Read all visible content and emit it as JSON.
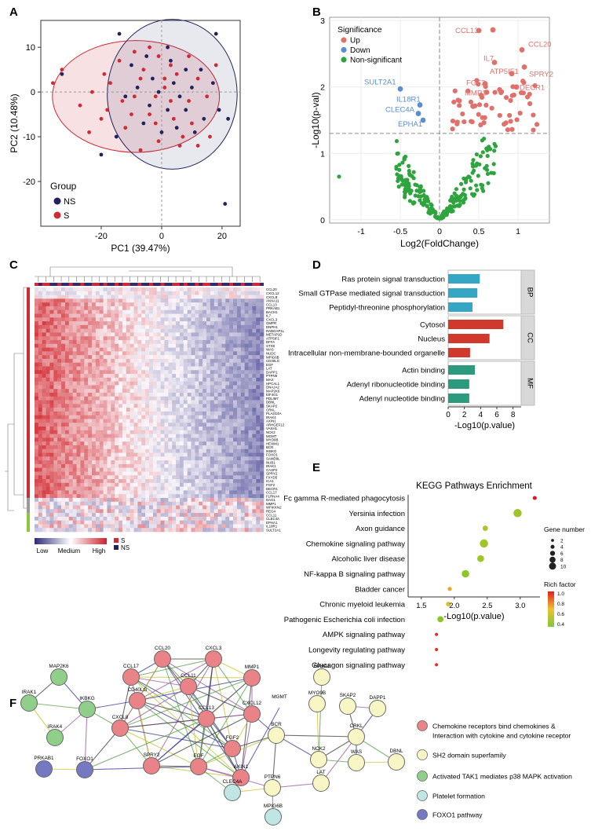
{
  "panel_letters": [
    "A",
    "B",
    "C",
    "D",
    "E",
    "F"
  ],
  "colors": {
    "ns": "#22225e",
    "s": "#cf2a36",
    "up": "#e0706a",
    "down": "#5b8ed1",
    "nonsig": "#2ea43f",
    "go_bp": "#35a7c4",
    "go_cc": "#cf3a2c",
    "go_mf": "#2d9a7d",
    "net_red": "#ea8387",
    "net_yellow": "#f7f6c4",
    "net_green": "#8fcf8a",
    "net_cyan": "#bfe6e3",
    "net_blue": "#7579c2"
  },
  "chart_data": [
    {
      "id": "A",
      "type": "scatter",
      "xlabel": "PC1 (39.47%)",
      "ylabel": "PC2 (10.48%)",
      "xlim": [
        -40,
        26
      ],
      "ylim": [
        -30,
        16
      ],
      "xticks": [
        -20,
        0,
        20
      ],
      "yticks": [
        10,
        0,
        -10,
        -20
      ],
      "legend": {
        "title": "Group",
        "entries": [
          "NS",
          "S"
        ],
        "position": "bottom-left"
      },
      "series": [
        {
          "name": "NS",
          "points": [
            [
              -5,
              8
            ],
            [
              2,
              10
            ],
            [
              -10,
              6
            ],
            [
              8,
              5
            ],
            [
              13,
              5
            ],
            [
              17,
              2
            ],
            [
              -3,
              3
            ],
            [
              -8,
              1
            ],
            [
              4,
              2
            ],
            [
              10,
              1
            ],
            [
              -1,
              0
            ],
            [
              6,
              -1
            ],
            [
              -12,
              -1
            ],
            [
              -4,
              -3
            ],
            [
              2,
              -4
            ],
            [
              8,
              -4
            ],
            [
              14,
              -6
            ],
            [
              19,
              -4
            ],
            [
              22,
              -6
            ],
            [
              -6,
              -7
            ],
            [
              0,
              -9
            ],
            [
              5,
              -8
            ],
            [
              11,
              -9
            ],
            [
              -15,
              -10
            ],
            [
              -20,
              -14
            ],
            [
              21,
              -25
            ],
            [
              -33,
              4
            ],
            [
              -14,
              13
            ],
            [
              18,
              13
            ],
            [
              3,
              7
            ]
          ]
        },
        {
          "name": "S",
          "points": [
            [
              -4,
              10
            ],
            [
              -9,
              9
            ],
            [
              -14,
              7
            ],
            [
              -1,
              8
            ],
            [
              3,
              6
            ],
            [
              9,
              8
            ],
            [
              -19,
              4
            ],
            [
              -17,
              2
            ],
            [
              -7,
              3
            ],
            [
              1,
              3
            ],
            [
              5,
              4
            ],
            [
              12,
              3
            ],
            [
              -23,
              0
            ],
            [
              -13,
              -2
            ],
            [
              -9,
              -1
            ],
            [
              -2,
              -1
            ],
            [
              3,
              -2
            ],
            [
              9,
              -2
            ],
            [
              15,
              -1
            ],
            [
              -27,
              -3
            ],
            [
              -18,
              -4
            ],
            [
              -10,
              -5
            ],
            [
              -4,
              -5
            ],
            [
              4,
              -6
            ],
            [
              10,
              -7
            ],
            [
              -12,
              -8
            ],
            [
              -1,
              -11
            ],
            [
              6,
              -12
            ],
            [
              -7,
              -13
            ],
            [
              -36,
              2
            ],
            [
              -33,
              5
            ],
            [
              -24,
              -9
            ],
            [
              -20,
              -6
            ],
            [
              1,
              1
            ],
            [
              -6,
              5
            ],
            [
              7,
              -10
            ],
            [
              12,
              -12
            ],
            [
              16,
              -10
            ],
            [
              18,
              6
            ],
            [
              -2,
              -7
            ]
          ]
        }
      ]
    },
    {
      "id": "B",
      "type": "scatter",
      "xlabel": "Log2(FoldChange)",
      "ylabel": "-Log10(p-val)",
      "xlim": [
        -1.4,
        1.4
      ],
      "ylim": [
        -0.05,
        3.05
      ],
      "xticks": [
        -1,
        -0.5,
        0,
        0.5,
        1
      ],
      "yticks": [
        0,
        1,
        2,
        3
      ],
      "legend": {
        "title": "Significance",
        "entries": [
          "Up",
          "Down",
          "Non-significant"
        ],
        "position": "top-left"
      },
      "thresholds": {
        "y": 1.3,
        "x": 0
      },
      "labeled_points": [
        {
          "label": "CCL13",
          "x": 0.5,
          "y": 2.85,
          "group": "Up"
        },
        {
          "label": "CCL20",
          "x": 1.05,
          "y": 2.56,
          "group": "Up"
        },
        {
          "label": "IL7",
          "x": 0.7,
          "y": 2.37,
          "group": "Up"
        },
        {
          "label": "SPRY2",
          "x": 1.08,
          "y": 2.3,
          "group": "Up"
        },
        {
          "label": "ATP5IF1",
          "x": 0.92,
          "y": 2.2,
          "group": "Up"
        },
        {
          "label": "FGF2",
          "x": 0.58,
          "y": 2.05,
          "group": "Up"
        },
        {
          "label": "DECR1",
          "x": 0.98,
          "y": 2.0,
          "group": "Up"
        },
        {
          "label": "MMP1",
          "x": 0.6,
          "y": 1.92,
          "group": "Up"
        },
        {
          "label": "SULT2A1",
          "x": -0.5,
          "y": 1.97,
          "group": "Down"
        },
        {
          "label": "IL18R1",
          "x": -0.25,
          "y": 1.73,
          "group": "Down"
        },
        {
          "label": "CLEC4A",
          "x": -0.27,
          "y": 1.6,
          "group": "Down"
        },
        {
          "label": "EPHA1",
          "x": -0.21,
          "y": 1.5,
          "group": "Down"
        }
      ]
    },
    {
      "id": "C",
      "type": "heatmap",
      "legend": {
        "scale": [
          "Low",
          "Medium",
          "High"
        ],
        "groups": [
          "S",
          "NS"
        ]
      },
      "rows": [
        "CCL20",
        "CXCL12",
        "CXCL8",
        "ANXA11",
        "CCL13",
        "PRKAB1",
        "BACH1",
        "IL7",
        "CXCL3",
        "GMPR",
        "DNPH1",
        "RABGAP1L",
        "METAP1D",
        "ATP5IF1",
        "DFFA",
        "STX8",
        "WAS",
        "NUDC",
        "MPIG6B",
        "CD40LG",
        "EGF",
        "LAT",
        "DAPP1",
        "PTPN6",
        "MAX",
        "HPCAL1",
        "DNAJA2",
        "MAP2K6",
        "EIF4G1",
        "PDLIM7",
        "DBNL",
        "SKAP2",
        "CRKL",
        "PLA2G4A",
        "IRAK4",
        "AXIN1",
        "ARHGEF12",
        "VASH1",
        "NCK2",
        "MGMT",
        "MYO9B",
        "HEXIM1",
        "BCR",
        "IKBKG",
        "FOXO1",
        "SAMD9L",
        "NUB1",
        "IRAK1",
        "CASP2",
        "SPRY2",
        "FXYD5",
        "ICA1",
        "FGF2",
        "DECR1",
        "CCL17",
        "FLRNA4",
        "DAG1",
        "MMP1",
        "WFIKKN2",
        "REG4",
        "CCL11",
        "CLEC4A",
        "EPHA1",
        "IL18R1",
        "SULT2A1"
      ]
    },
    {
      "id": "D",
      "type": "bar",
      "xlabel": "-Log10(p.value)",
      "xlim": [
        0,
        9
      ],
      "xticks": [
        0,
        2,
        4,
        6,
        8
      ],
      "groups": [
        {
          "name": "BP",
          "terms": [
            "Ras protein signal transduction",
            "Small GTPase mediated signal transduction",
            "Peptidyl-threonine phosphorylation"
          ],
          "values": [
            3.9,
            3.6,
            3.0
          ]
        },
        {
          "name": "CC",
          "terms": [
            "Cytosol",
            "Nucleus",
            "Intracellular non-membrane-bounded organelle"
          ],
          "values": [
            6.8,
            5.1,
            2.7
          ]
        },
        {
          "name": "MF",
          "terms": [
            "Actin binding",
            "Adenyl ribonucleotide binding",
            "Adenyl nucleotide binding"
          ],
          "values": [
            3.3,
            2.6,
            2.6
          ]
        }
      ]
    },
    {
      "id": "E",
      "type": "scatter",
      "title": "KEGG Pathways Enrichment",
      "xlabel": "-Log10(p.value)",
      "xlim": [
        1.3,
        3.3
      ],
      "xticks": [
        1.5,
        2.0,
        2.5,
        3.0
      ],
      "size_legend": {
        "title": "Gene number",
        "entries": [
          "2",
          "4",
          "6",
          "8",
          "10"
        ]
      },
      "color_legend": {
        "title": "Rich factor",
        "entries": [
          "1.0",
          "0.8",
          "0.6",
          "0.4"
        ]
      },
      "pathways": [
        {
          "name": "Fc gamma R-mediated phagocytosis",
          "x": 3.22,
          "genes": 3,
          "rich": 1.0
        },
        {
          "name": "Yersinia infection",
          "x": 2.96,
          "genes": 9,
          "rich": 0.5
        },
        {
          "name": "Axon guidance",
          "x": 2.47,
          "genes": 5,
          "rich": 0.55
        },
        {
          "name": "Chemokine signaling pathway",
          "x": 2.45,
          "genes": 9,
          "rich": 0.5
        },
        {
          "name": "Alcoholic liver disease",
          "x": 2.4,
          "genes": 7,
          "rich": 0.5
        },
        {
          "name": "NF-kappa B signaling pathway",
          "x": 2.17,
          "genes": 8,
          "rich": 0.45
        },
        {
          "name": "Bladder cancer",
          "x": 1.93,
          "genes": 3,
          "rich": 0.75
        },
        {
          "name": "Chronic myeloid leukemia",
          "x": 1.91,
          "genes": 4,
          "rich": 0.65
        },
        {
          "name": "Pathogenic Escherichia coli infection",
          "x": 1.79,
          "genes": 6,
          "rich": 0.45
        },
        {
          "name": "AMPK signaling pathway",
          "x": 1.73,
          "genes": 2,
          "rich": 0.95
        },
        {
          "name": "Longevity regulating pathway",
          "x": 1.73,
          "genes": 2,
          "rich": 0.95
        },
        {
          "name": "Glucagon signaling pathway",
          "x": 1.73,
          "genes": 2,
          "rich": 0.95
        }
      ]
    }
  ],
  "network": {
    "nodes": [
      {
        "id": "MAP2K6",
        "c": "green"
      },
      {
        "id": "IRAK1",
        "c": "green"
      },
      {
        "id": "IKBKG",
        "c": "green"
      },
      {
        "id": "IRAK4",
        "c": "green"
      },
      {
        "id": "PRKAB1",
        "c": "blue"
      },
      {
        "id": "FOXO1",
        "c": "blue"
      },
      {
        "id": "CCL17",
        "c": "red"
      },
      {
        "id": "CCL20",
        "c": "red"
      },
      {
        "id": "CXCL3",
        "c": "red"
      },
      {
        "id": "MMP1",
        "c": "red"
      },
      {
        "id": "CD40LG",
        "c": "red"
      },
      {
        "id": "CCL11",
        "c": "red"
      },
      {
        "id": "CXCL8",
        "c": "red"
      },
      {
        "id": "CCL13",
        "c": "red"
      },
      {
        "id": "CXCL12",
        "c": "red"
      },
      {
        "id": "FGF2",
        "c": "red"
      },
      {
        "id": "AXIN1",
        "c": "red"
      },
      {
        "id": "SPRY2",
        "c": "red"
      },
      {
        "id": "EGF",
        "c": "red"
      },
      {
        "id": "MGMT",
        "c": "none"
      },
      {
        "id": "EPHA1",
        "c": "yellow"
      },
      {
        "id": "MYO9B",
        "c": "yellow"
      },
      {
        "id": "SKAP2",
        "c": "yellow"
      },
      {
        "id": "DAPP1",
        "c": "yellow"
      },
      {
        "id": "BCR",
        "c": "yellow"
      },
      {
        "id": "CRKL",
        "c": "yellow"
      },
      {
        "id": "NCK2",
        "c": "yellow"
      },
      {
        "id": "WAS",
        "c": "yellow"
      },
      {
        "id": "DBNL",
        "c": "yellow"
      },
      {
        "id": "LAT",
        "c": "yellow"
      },
      {
        "id": "PTPN6",
        "c": "yellow"
      },
      {
        "id": "CLEC4A",
        "c": "cyan"
      },
      {
        "id": "MPIG6B",
        "c": "cyan"
      }
    ],
    "legend": [
      {
        "label": "Chemokine receptors bind chemokines &",
        "c": "red"
      },
      {
        "label": "Interaction with cytokine and cytokine receptor",
        "c": "red"
      },
      {
        "label": "SH2 domain superfamily",
        "c": "yellow"
      },
      {
        "label": "Activated TAK1 mediates p38 MAPK activation",
        "c": "green"
      },
      {
        "label": "Platelet formation",
        "c": "cyan"
      },
      {
        "label": "FOXO1 pathway",
        "c": "blue"
      }
    ]
  }
}
